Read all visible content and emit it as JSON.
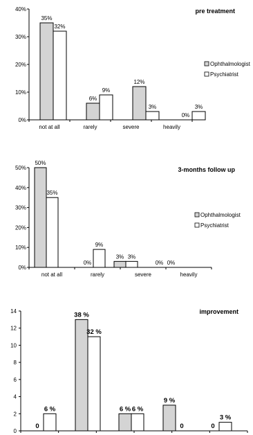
{
  "chart_data": [
    {
      "type": "bar",
      "title": "pre treatment",
      "categories": [
        "not at all",
        "rarely",
        "severe",
        "heavily"
      ],
      "series": [
        {
          "name": "Ophthalmologist",
          "values": [
            35,
            6,
            12,
            0
          ],
          "labels": [
            "35%",
            "6%",
            "12%",
            "0%"
          ]
        },
        {
          "name": "Psychiatrist",
          "values": [
            32,
            9,
            3,
            3
          ],
          "labels": [
            "32%",
            "9%",
            "3%",
            "3%"
          ]
        }
      ],
      "yticks": [
        "0%",
        "10%",
        "20%",
        "30%",
        "40%"
      ],
      "ylim": [
        0,
        40
      ],
      "legend_position": "right",
      "colors": {
        "Ophthalmologist": "#d4d4d4",
        "Psychiatrist": "#ffffff",
        "stroke": "#000000"
      }
    },
    {
      "type": "bar",
      "title": "3-months follow up",
      "categories": [
        "not at all",
        "rarely",
        "severe",
        "heavily"
      ],
      "series": [
        {
          "name": "Ophthalmologist",
          "values": [
            50,
            0,
            3,
            0
          ],
          "labels": [
            "50%",
            "0%",
            "3%",
            "0%"
          ]
        },
        {
          "name": "Psychiatrist",
          "values": [
            35,
            9,
            3,
            0
          ],
          "labels": [
            "35%",
            "9%",
            "3%",
            "0%"
          ]
        }
      ],
      "yticks": [
        "0%",
        "10%",
        "20%",
        "30%",
        "40%",
        "50%"
      ],
      "ylim": [
        0,
        50
      ],
      "legend_position": "right",
      "colors": {
        "Ophthalmologist": "#d4d4d4",
        "Psychiatrist": "#ffffff",
        "stroke": "#000000"
      }
    },
    {
      "type": "bar",
      "title": "improvement",
      "categories": [
        "",
        "",
        "",
        "",
        "",
        ""
      ],
      "series": [
        {
          "name": "",
          "values": [
            0,
            13,
            2,
            3,
            0,
            0
          ],
          "labels": [
            "0",
            "38 %",
            "6 %",
            "9 %",
            "0",
            ""
          ]
        },
        {
          "name": "",
          "values": [
            2,
            11,
            2,
            0,
            1,
            0
          ],
          "labels": [
            "6 %",
            "32 %",
            "6 %",
            "0",
            "3 %",
            ""
          ]
        }
      ],
      "yticks": [
        "0",
        "2",
        "4",
        "6",
        "8",
        "10",
        "12",
        "14"
      ],
      "ylim": [
        0,
        14
      ],
      "legend_position": "none",
      "colors": {
        "series1": "#d4d4d4",
        "series2": "#ffffff",
        "stroke": "#000000"
      }
    }
  ]
}
